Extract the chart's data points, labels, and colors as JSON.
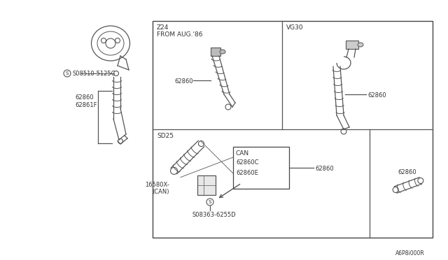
{
  "bg_color": "#ffffff",
  "labels": {
    "left_screw": "S08510-5125C",
    "left_part1": "62860",
    "left_part2": "62861F",
    "z24_label": "Z24\nFROM AUG.'86",
    "z24_part": "62860",
    "vg30_label": "VG30",
    "vg30_part": "62860",
    "sd25_label": "SD25",
    "can_box_label": "CAN",
    "can_part1": "62860C",
    "can_part2": "62860E",
    "sd25_62860": "62860",
    "sd25_part2": "16580X-\n(CAN)",
    "sd25_screw": "S08363-6255D",
    "sd25_right_part": "62860",
    "diagram_code": "A6P8i000R"
  },
  "line_color": "#555555",
  "text_color": "#333333",
  "box_color": "#444444"
}
